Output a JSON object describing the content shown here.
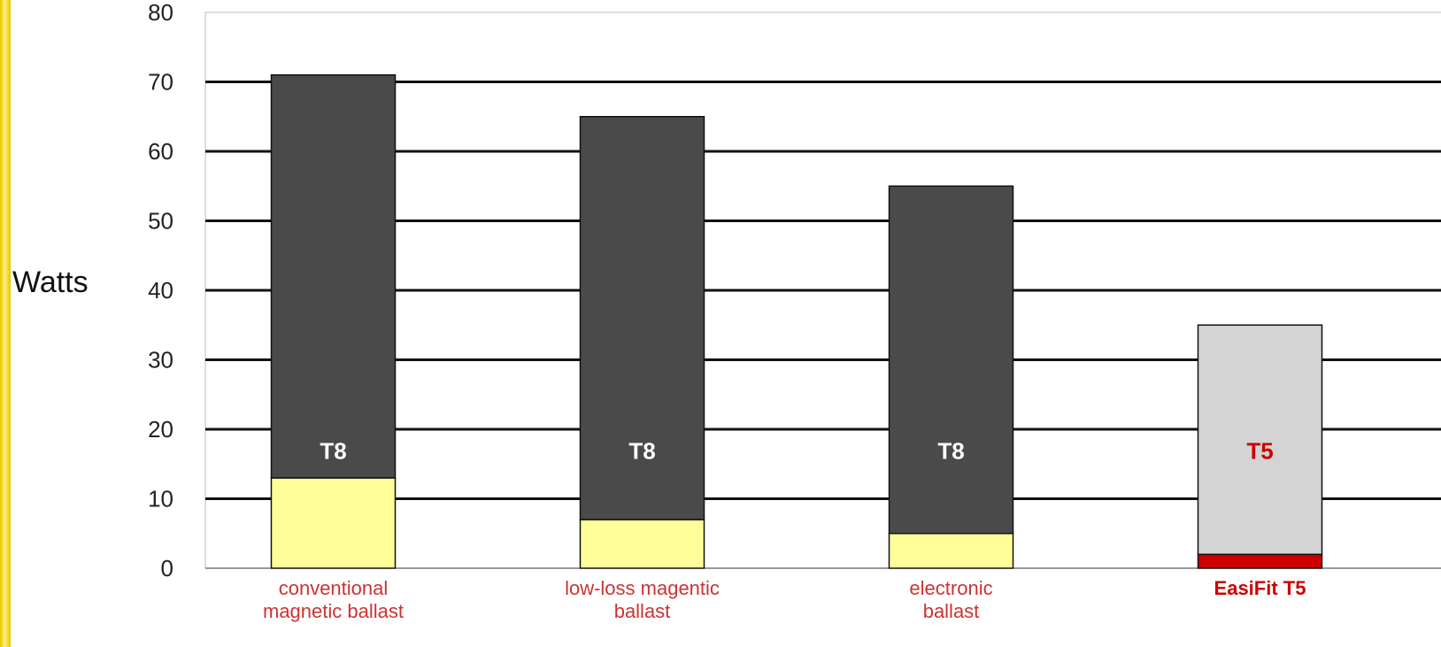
{
  "chart_data": {
    "type": "bar",
    "stacked": true,
    "ylabel": "Watts",
    "ylim": [
      0,
      80
    ],
    "yticks": [
      0,
      10,
      20,
      30,
      40,
      50,
      60,
      70,
      80
    ],
    "categories": [
      [
        "conventional",
        "magnetic ballast"
      ],
      [
        "low-loss magentic",
        "ballast"
      ],
      [
        "electronic",
        "ballast"
      ],
      [
        "EasiFit T5"
      ]
    ],
    "category_colors": [
      "#cc3333",
      "#cc3333",
      "#cc3333",
      "#cc0000"
    ],
    "category_bold": [
      false,
      false,
      false,
      true
    ],
    "bar_labels": [
      "T8",
      "T8",
      "T8",
      "T5"
    ],
    "bar_label_colors": [
      "#ffffff",
      "#ffffff",
      "#ffffff",
      "#cc0000"
    ],
    "series": [
      {
        "values": [
          13,
          7,
          5,
          2
        ],
        "colors": [
          "#ffff99",
          "#ffff99",
          "#ffff99",
          "#cc0000"
        ]
      },
      {
        "values": [
          58,
          58,
          50,
          33
        ],
        "colors": [
          "#4a4a4a",
          "#4a4a4a",
          "#4a4a4a",
          "#d4d4d4"
        ]
      }
    ],
    "grid": true,
    "legend": "none",
    "colors": {
      "gridline": "#111111",
      "left_accent": "#e8c400",
      "left_accent_light": "#fff27a"
    }
  }
}
